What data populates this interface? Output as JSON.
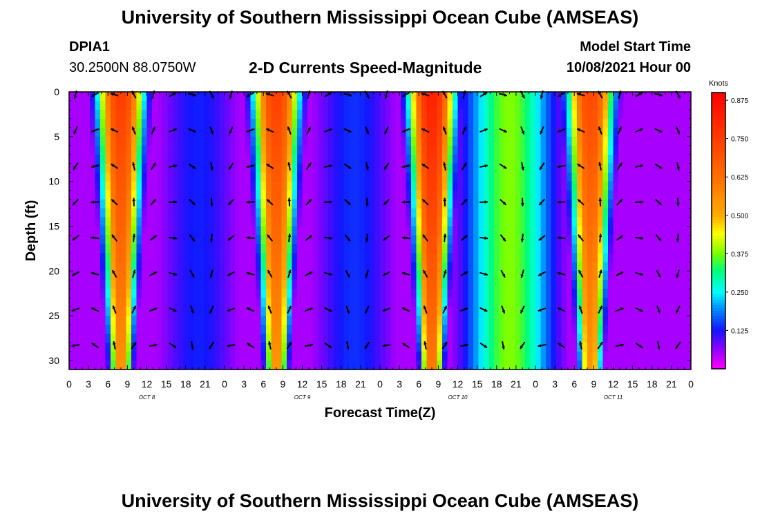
{
  "header": {
    "title": "University of Southern Mississippi Ocean Cube (AMSEAS)",
    "station_id": "DPIA1",
    "coordinates": "30.2500N  88.0750W",
    "product": "2-D Currents Speed-Magnitude",
    "model_start_label": "Model Start Time",
    "model_start_value": "10/08/2021 Hour 00"
  },
  "footer": {
    "title": "University of Southern Mississippi Ocean Cube (AMSEAS)"
  },
  "chart_data": {
    "type": "heatmap",
    "title": "2-D Currents Speed-Magnitude",
    "xlabel": "Forecast Time(Z)",
    "ylabel": "Depth (ft)",
    "x_tick_labels": [
      "0",
      "3",
      "6",
      "9",
      "12",
      "15",
      "18",
      "21",
      "0",
      "3",
      "6",
      "9",
      "12",
      "15",
      "18",
      "21",
      "0",
      "3",
      "6",
      "9",
      "12",
      "15",
      "18",
      "21",
      "0",
      "3",
      "6",
      "9",
      "12",
      "15",
      "18",
      "21",
      "0"
    ],
    "x_range_hours": [
      0,
      96
    ],
    "date_labels": [
      {
        "text": "OCT 8",
        "hour": 12
      },
      {
        "text": "OCT 9",
        "hour": 36
      },
      {
        "text": "OCT 10",
        "hour": 60
      },
      {
        "text": "OCT 11",
        "hour": 84
      }
    ],
    "y_tick_labels": [
      "0",
      "5",
      "10",
      "15",
      "20",
      "25",
      "30"
    ],
    "ylim": [
      0,
      31
    ],
    "colorbar": {
      "unit": "Knots",
      "ticks": [
        "0.875",
        "0.750",
        "0.625",
        "0.500",
        "0.375",
        "0.250",
        "0.125"
      ],
      "range": [
        0,
        0.9
      ]
    },
    "peaks": [
      {
        "center_hour": 8,
        "peak_speed": 0.75
      },
      {
        "center_hour": 32,
        "peak_speed": 0.74
      },
      {
        "center_hour": 56,
        "peak_speed": 0.82
      },
      {
        "center_hour": 80.5,
        "peak_speed": 0.72
      }
    ],
    "between_peaks": [
      {
        "center_hour": 20,
        "speed": 0.13
      },
      {
        "center_hour": 44,
        "speed": 0.14
      },
      {
        "center_hour": 68,
        "speed": 0.38
      }
    ],
    "arrow_depths_ft": [
      0,
      4,
      8,
      12,
      16,
      20,
      24,
      28
    ]
  }
}
